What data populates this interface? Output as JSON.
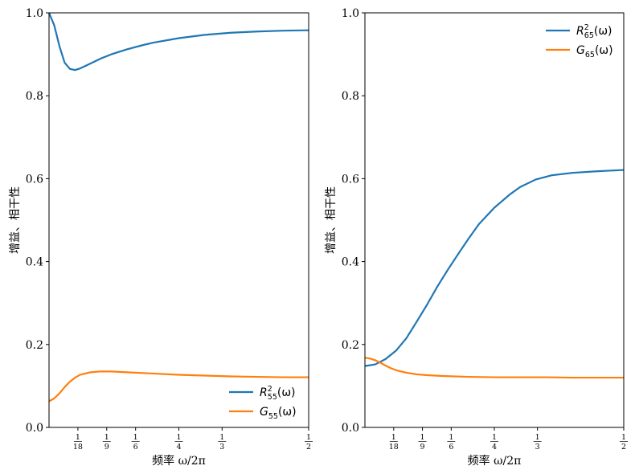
{
  "chart_data": [
    {
      "type": "line",
      "xlabel": "频率 ω/2π",
      "ylabel": "增益、相干性",
      "xlim": [
        0,
        0.5
      ],
      "ylim": [
        0,
        1.0
      ],
      "yticks": [
        0.0,
        0.2,
        0.4,
        0.6,
        0.8,
        1.0
      ],
      "ytick_labels": [
        "0.0",
        "0.2",
        "0.4",
        "0.6",
        "0.8",
        "1.0"
      ],
      "xticks": [
        {
          "value": 0.0556,
          "num": "1",
          "den": "18"
        },
        {
          "value": 0.1111,
          "num": "1",
          "den": "9"
        },
        {
          "value": 0.1667,
          "num": "1",
          "den": "6"
        },
        {
          "value": 0.25,
          "num": "1",
          "den": "4"
        },
        {
          "value": 0.3333,
          "num": "1",
          "den": "3"
        },
        {
          "value": 0.5,
          "num": "1",
          "den": "2"
        }
      ],
      "legend_position": "lower-right",
      "series": [
        {
          "name": "R²₅₅(ω)",
          "label_main": "R",
          "label_sup": "2",
          "label_sub": "55",
          "label_tail": "(ω)",
          "color": "#1f77b4",
          "x": [
            0.0,
            0.01,
            0.02,
            0.03,
            0.04,
            0.05,
            0.06,
            0.08,
            0.1,
            0.12,
            0.15,
            0.18,
            0.2,
            0.25,
            0.3,
            0.35,
            0.4,
            0.45,
            0.5
          ],
          "y": [
            1.0,
            0.97,
            0.92,
            0.88,
            0.865,
            0.862,
            0.866,
            0.878,
            0.89,
            0.9,
            0.912,
            0.922,
            0.928,
            0.939,
            0.947,
            0.952,
            0.955,
            0.957,
            0.958
          ]
        },
        {
          "name": "G₅₅(ω)",
          "label_main": "G",
          "label_sup": "",
          "label_sub": "55",
          "label_tail": "(ω)",
          "color": "#ff7f0e",
          "x": [
            0.0,
            0.01,
            0.02,
            0.03,
            0.04,
            0.05,
            0.06,
            0.08,
            0.1,
            0.12,
            0.15,
            0.2,
            0.25,
            0.3,
            0.35,
            0.4,
            0.45,
            0.5
          ],
          "y": [
            0.063,
            0.07,
            0.082,
            0.097,
            0.11,
            0.12,
            0.127,
            0.133,
            0.135,
            0.135,
            0.133,
            0.13,
            0.127,
            0.125,
            0.123,
            0.122,
            0.121,
            0.121
          ]
        }
      ]
    },
    {
      "type": "line",
      "xlabel": "频率 ω/2π",
      "ylabel": "增益、相干性",
      "xlim": [
        0,
        0.5
      ],
      "ylim": [
        0,
        1.0
      ],
      "yticks": [
        0.0,
        0.2,
        0.4,
        0.6,
        0.8,
        1.0
      ],
      "ytick_labels": [
        "0.0",
        "0.2",
        "0.4",
        "0.6",
        "0.8",
        "1.0"
      ],
      "xticks": [
        {
          "value": 0.0556,
          "num": "1",
          "den": "18"
        },
        {
          "value": 0.1111,
          "num": "1",
          "den": "9"
        },
        {
          "value": 0.1667,
          "num": "1",
          "den": "6"
        },
        {
          "value": 0.25,
          "num": "1",
          "den": "4"
        },
        {
          "value": 0.3333,
          "num": "1",
          "den": "3"
        },
        {
          "value": 0.5,
          "num": "1",
          "den": "2"
        }
      ],
      "legend_position": "upper-right",
      "series": [
        {
          "name": "R²₆₅(ω)",
          "label_main": "R",
          "label_sup": "2",
          "label_sub": "65",
          "label_tail": "(ω)",
          "color": "#1f77b4",
          "x": [
            0.0,
            0.02,
            0.04,
            0.06,
            0.08,
            0.1,
            0.12,
            0.14,
            0.16,
            0.18,
            0.2,
            0.22,
            0.25,
            0.28,
            0.3,
            0.33,
            0.36,
            0.4,
            0.45,
            0.5
          ],
          "y": [
            0.148,
            0.152,
            0.165,
            0.185,
            0.215,
            0.255,
            0.296,
            0.34,
            0.38,
            0.418,
            0.455,
            0.49,
            0.53,
            0.562,
            0.58,
            0.598,
            0.608,
            0.614,
            0.618,
            0.621
          ]
        },
        {
          "name": "G₆₅(ω)",
          "label_main": "G",
          "label_sup": "",
          "label_sub": "65",
          "label_tail": "(ω)",
          "color": "#ff7f0e",
          "x": [
            0.0,
            0.01,
            0.02,
            0.03,
            0.04,
            0.05,
            0.06,
            0.08,
            0.1,
            0.12,
            0.15,
            0.2,
            0.25,
            0.3,
            0.35,
            0.4,
            0.45,
            0.5
          ],
          "y": [
            0.168,
            0.166,
            0.162,
            0.156,
            0.149,
            0.143,
            0.138,
            0.132,
            0.128,
            0.126,
            0.124,
            0.122,
            0.121,
            0.121,
            0.121,
            0.12,
            0.12,
            0.12
          ]
        }
      ]
    }
  ]
}
